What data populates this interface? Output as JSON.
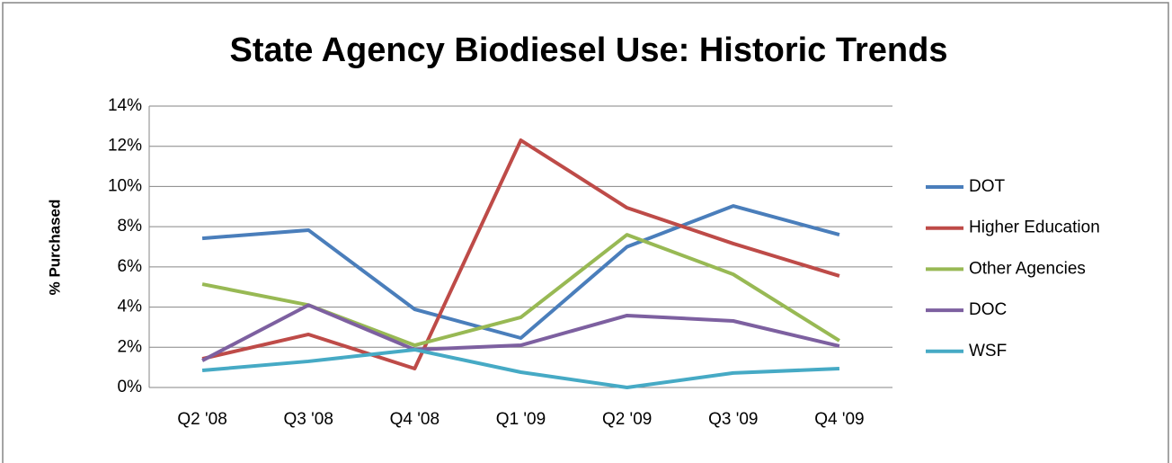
{
  "chart_data": {
    "type": "line",
    "title": "State Agency Biodiesel Use: Historic Trends",
    "y_label": "% Purchased",
    "categories": [
      "Q2 '08",
      "Q3 '08",
      "Q4 '08",
      "Q1 '09",
      "Q2 '09",
      "Q3 '09",
      "Q4 '09"
    ],
    "series": [
      {
        "name": "DOT",
        "color": "#4a7ebb",
        "values": [
          7.42,
          7.83,
          3.89,
          2.46,
          7.0,
          9.03,
          7.6
        ]
      },
      {
        "name": "Higher Education",
        "color": "#be4b48",
        "values": [
          1.43,
          2.64,
          0.94,
          12.3,
          8.94,
          7.16,
          5.55
        ]
      },
      {
        "name": "Other Agencies",
        "color": "#98b954",
        "values": [
          5.14,
          4.1,
          2.1,
          3.49,
          7.6,
          5.63,
          2.33
        ]
      },
      {
        "name": "DOC",
        "color": "#7d60a0",
        "values": [
          1.34,
          4.1,
          1.88,
          2.1,
          3.58,
          3.31,
          2.06
        ]
      },
      {
        "name": "WSF",
        "color": "#46aac5",
        "values": [
          0.85,
          1.3,
          1.88,
          0.76,
          0,
          0.72,
          0.94
        ]
      }
    ],
    "ylim": [
      0,
      14
    ],
    "yticks": [
      {
        "value": 0,
        "label": "0%"
      },
      {
        "value": 2,
        "label": "2%"
      },
      {
        "value": 4,
        "label": "4%"
      },
      {
        "value": 6,
        "label": "6%"
      },
      {
        "value": 8,
        "label": "8%"
      },
      {
        "value": 10,
        "label": "10%"
      },
      {
        "value": 12,
        "label": "12%"
      },
      {
        "value": 14,
        "label": "14%"
      }
    ],
    "grid": true,
    "legend": "right"
  }
}
